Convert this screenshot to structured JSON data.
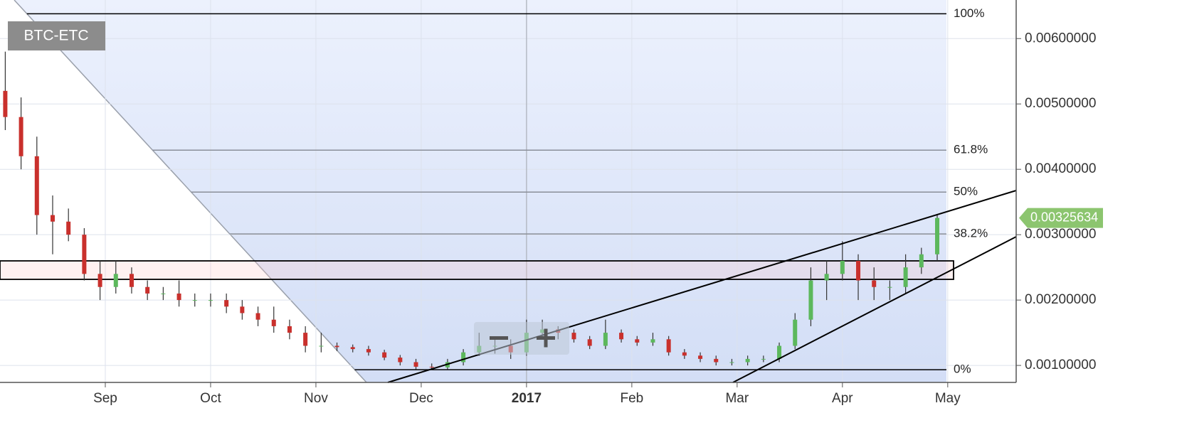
{
  "chart_data": {
    "type": "candlestick",
    "symbol": "BTC-ETC",
    "x": [
      -0.95,
      -0.8,
      -0.65,
      -0.5,
      -0.35,
      -0.2,
      -0.05,
      0.1,
      0.25,
      0.4,
      0.55,
      0.7,
      0.85,
      1,
      1.15,
      1.3,
      1.45,
      1.6,
      1.75,
      1.9,
      2.05,
      2.2,
      2.35,
      2.5,
      2.65,
      2.8,
      2.95,
      3.1,
      3.25,
      3.4,
      3.55,
      3.7,
      3.85,
      4,
      4.15,
      4.3,
      4.45,
      4.6,
      4.75,
      4.9,
      5.05,
      5.2,
      5.35,
      5.5,
      5.65,
      5.8,
      5.95,
      6.1,
      6.25,
      6.4,
      6.55,
      6.7,
      6.85,
      7,
      7.15,
      7.3,
      7.45,
      7.6,
      7.75,
      7.9
    ],
    "open": [
      0.0052,
      0.0048,
      0.0042,
      0.0033,
      0.0032,
      0.003,
      0.0024,
      0.0022,
      0.0024,
      0.0022,
      0.0021,
      0.0021,
      0.002,
      0.002,
      0.002,
      0.0019,
      0.0018,
      0.0017,
      0.0016,
      0.0015,
      0.0013,
      0.0013,
      0.00128,
      0.00125,
      0.0012,
      0.00112,
      0.00105,
      0.00098,
      0.00097,
      0.00105,
      0.0012,
      0.0013,
      0.0013,
      0.0012,
      0.0015,
      0.00155,
      0.0015,
      0.0014,
      0.0013,
      0.0015,
      0.0014,
      0.00135,
      0.0014,
      0.0012,
      0.00115,
      0.0011,
      0.00105,
      0.00105,
      0.0011,
      0.0011,
      0.0013,
      0.0017,
      0.0023,
      0.0024,
      0.0026,
      0.0023,
      0.0022,
      0.0022,
      0.0025,
      0.0027
    ],
    "high": [
      0.0058,
      0.0051,
      0.0045,
      0.0036,
      0.0034,
      0.0031,
      0.0026,
      0.0026,
      0.0025,
      0.0023,
      0.0022,
      0.0023,
      0.0021,
      0.0021,
      0.0021,
      0.002,
      0.0019,
      0.0019,
      0.0017,
      0.0016,
      0.0015,
      0.00135,
      0.00132,
      0.0013,
      0.00124,
      0.00116,
      0.0011,
      0.00103,
      0.0011,
      0.00125,
      0.0015,
      0.0014,
      0.0014,
      0.0017,
      0.0017,
      0.0016,
      0.00155,
      0.00145,
      0.0017,
      0.00155,
      0.00145,
      0.0015,
      0.00145,
      0.00125,
      0.0012,
      0.00115,
      0.0011,
      0.00115,
      0.00115,
      0.00135,
      0.0018,
      0.0025,
      0.0026,
      0.0029,
      0.0027,
      0.0025,
      0.0023,
      0.0027,
      0.0028,
      0.0033
    ],
    "low": [
      0.0046,
      0.004,
      0.003,
      0.0027,
      0.0029,
      0.0023,
      0.002,
      0.0021,
      0.0021,
      0.002,
      0.002,
      0.0019,
      0.0019,
      0.0019,
      0.0018,
      0.0017,
      0.0016,
      0.0015,
      0.0014,
      0.0012,
      0.0012,
      0.00122,
      0.0012,
      0.00115,
      0.00108,
      0.001,
      0.00094,
      0.00093,
      0.00094,
      0.001,
      0.00115,
      0.00118,
      0.0011,
      0.00115,
      0.0014,
      0.0014,
      0.00135,
      0.00125,
      0.00125,
      0.00135,
      0.0013,
      0.0013,
      0.00115,
      0.0011,
      0.00105,
      0.001,
      0.001,
      0.001,
      0.00105,
      0.00105,
      0.00125,
      0.0016,
      0.002,
      0.0023,
      0.002,
      0.002,
      0.002,
      0.0021,
      0.0024,
      0.0026
    ],
    "close": [
      0.0048,
      0.0042,
      0.0033,
      0.0032,
      0.003,
      0.0024,
      0.0022,
      0.0024,
      0.0022,
      0.0021,
      0.0021,
      0.002,
      0.002,
      0.002,
      0.0019,
      0.0018,
      0.0017,
      0.0016,
      0.0015,
      0.0013,
      0.0013,
      0.00128,
      0.00125,
      0.0012,
      0.00112,
      0.00105,
      0.00098,
      0.00097,
      0.00105,
      0.0012,
      0.0013,
      0.0013,
      0.0012,
      0.0015,
      0.00155,
      0.0015,
      0.0014,
      0.0013,
      0.0015,
      0.0014,
      0.00135,
      0.0014,
      0.0012,
      0.00115,
      0.0011,
      0.00105,
      0.00105,
      0.0011,
      0.0011,
      0.0013,
      0.0017,
      0.0023,
      0.0024,
      0.0026,
      0.0023,
      0.0022,
      0.0022,
      0.0025,
      0.0027,
      0.003256
    ],
    "up_color": "#5cb85c",
    "down_color": "#c9302c",
    "xlim": [
      -1.0,
      8.65
    ],
    "xticks": [
      {
        "value": 0,
        "label": "Sep"
      },
      {
        "value": 1,
        "label": "Oct"
      },
      {
        "value": 2,
        "label": "Nov"
      },
      {
        "value": 3,
        "label": "Dec"
      },
      {
        "value": 4,
        "label": "2017"
      },
      {
        "value": 5,
        "label": "Feb"
      },
      {
        "value": 6,
        "label": "Mar"
      },
      {
        "value": 7,
        "label": "Apr"
      },
      {
        "value": 8,
        "label": "May"
      }
    ],
    "ylim": [
      0.00074,
      0.00659
    ],
    "yticks": [
      {
        "value": 0.001,
        "label": "0.00100000"
      },
      {
        "value": 0.002,
        "label": "0.00200000"
      },
      {
        "value": 0.003,
        "label": "0.00300000"
      },
      {
        "value": 0.004,
        "label": "0.00400000"
      },
      {
        "value": 0.005,
        "label": "0.00500000"
      },
      {
        "value": 0.006,
        "label": "0.00600000"
      }
    ],
    "grid": true,
    "last_price": 0.00325634,
    "last_price_color": "#8cc56f",
    "fib_levels": [
      {
        "label": "100%",
        "price": 0.00638,
        "color": "#000000"
      },
      {
        "label": "61.8%",
        "price": 0.004293,
        "color": "#8a8f99"
      },
      {
        "label": "50%",
        "price": 0.003652,
        "color": "#8a8f99"
      },
      {
        "label": "38.2%",
        "price": 0.003011,
        "color": "#8a8f99"
      },
      {
        "label": "0%",
        "price": 0.000935,
        "color": "#000000"
      }
    ]
  }
}
